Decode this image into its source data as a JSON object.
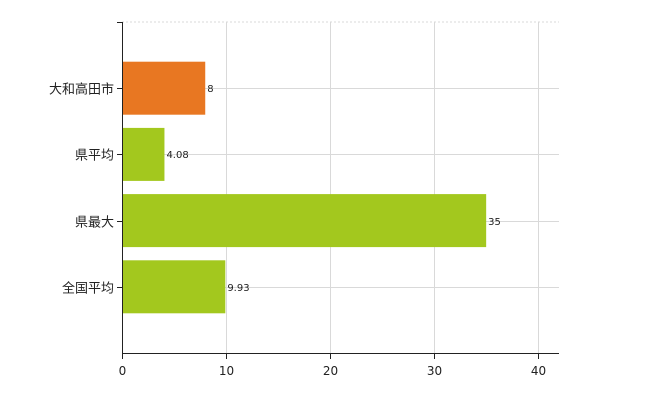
{
  "chart_data": {
    "type": "bar",
    "orientation": "horizontal",
    "title": "",
    "xlabel": "",
    "ylabel": "",
    "categories": [
      "大和高田市",
      "県平均",
      "県最大",
      "全国平均"
    ],
    "values": [
      8,
      4.08,
      35,
      9.93
    ],
    "value_labels": [
      "8",
      "4.08",
      "35",
      "9.93"
    ],
    "bar_colors": [
      "#e87722",
      "#a3c81e",
      "#a3c81e",
      "#a3c81e"
    ],
    "xlim": [
      0,
      42
    ],
    "xticks": [
      0,
      10,
      20,
      30,
      40
    ],
    "xtick_labels": [
      "0",
      "10",
      "20",
      "30",
      "40"
    ],
    "grid": true,
    "legend": "none"
  },
  "colors": {
    "highlight": "#e87722",
    "default_bar": "#a3c81e",
    "grid": "#d9d9d9",
    "axis": "#222222"
  }
}
